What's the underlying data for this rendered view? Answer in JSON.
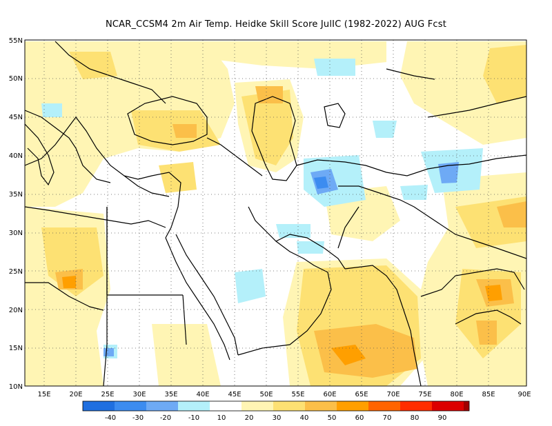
{
  "title": "NCAR_CCSM4  2m Air Temp. Heidke Skill Score JulIC (1982-2022) AUG Fcst",
  "map": {
    "lon_range": [
      11,
      90
    ],
    "lat_range": [
      10,
      55
    ],
    "lat_ticks": [
      "10N",
      "15N",
      "20N",
      "25N",
      "30N",
      "35N",
      "40N",
      "45N",
      "50N",
      "55N"
    ],
    "lon_ticks": [
      "15E",
      "20E",
      "25E",
      "30E",
      "35E",
      "40E",
      "45E",
      "50E",
      "55E",
      "60E",
      "65E",
      "70E",
      "75E",
      "80E",
      "85E",
      "90E"
    ],
    "coastline_color": "#000000",
    "gridline_style": "dotted"
  },
  "colorbar": {
    "labels": [
      "-40",
      "-30",
      "-20",
      "-10",
      "10",
      "20",
      "30",
      "40",
      "50",
      "60",
      "70",
      "80",
      "90"
    ],
    "colors": [
      "#1f6fe0",
      "#3c8cf0",
      "#6eaaf5",
      "#b4f0fa",
      "#ffffff",
      "#fff5b4",
      "#fde173",
      "#fbbf49",
      "#ff9f00",
      "#ff6400",
      "#ff2d00",
      "#dc0000",
      "#a00000"
    ]
  }
}
